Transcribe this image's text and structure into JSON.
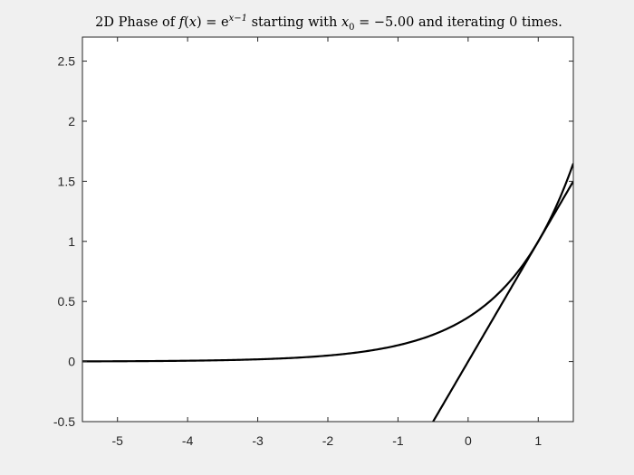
{
  "chart_data": {
    "type": "line",
    "title": {
      "prefix": "2D Phase of ",
      "func": "f",
      "paren_open": "(",
      "var": "x",
      "paren_close": ")",
      "equals": " = ",
      "e": "e",
      "exponent": "x−1",
      "mid": " starting with ",
      "x0_var": "x",
      "x0_sub": "0",
      "x0_value": " = −5.00",
      "suffix": " and iterating 0 times."
    },
    "xlim": [
      -5.5,
      1.5
    ],
    "ylim": [
      -0.5,
      2.7
    ],
    "xticks": [
      -5,
      -4,
      -3,
      -2,
      -1,
      0,
      1
    ],
    "xtick_labels": [
      "-5",
      "-4",
      "-3",
      "-2",
      "-1",
      "0",
      "1"
    ],
    "yticks": [
      -0.5,
      0,
      0.5,
      1,
      1.5,
      2,
      2.5
    ],
    "ytick_labels": [
      "-0.5",
      "0",
      "0.5",
      "1",
      "1.5",
      "2",
      "2.5"
    ],
    "grid": false,
    "series": [
      {
        "kind": "curve",
        "function": "exp(x-1)",
        "x_range": [
          -5.5,
          1.5
        ],
        "color": "#000000"
      },
      {
        "kind": "line",
        "function": "x",
        "x_range": [
          -0.5,
          1.5
        ],
        "color": "#000000"
      }
    ]
  },
  "colors": {
    "figure_background": "#f0f0f0",
    "axes_background": "#ffffff",
    "axis_color": "#262626"
  }
}
